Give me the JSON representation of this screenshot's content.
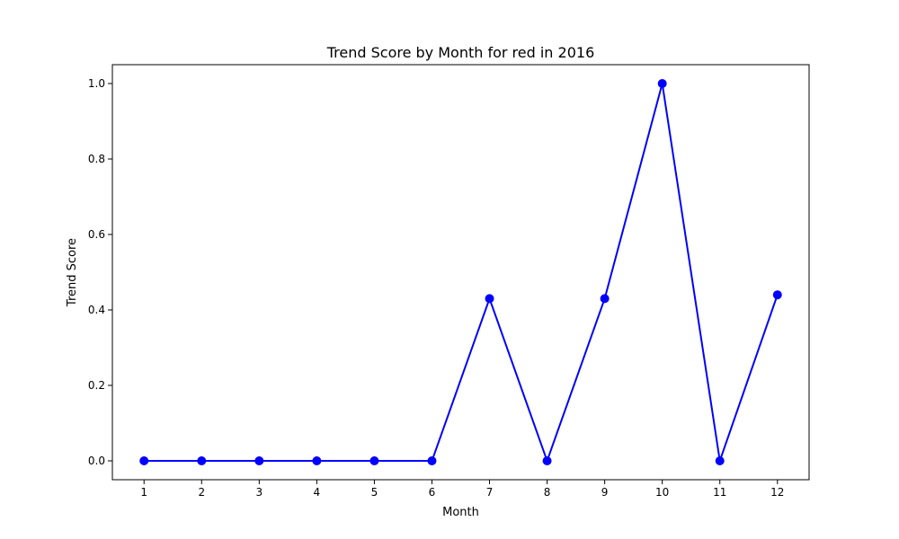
{
  "chart_data": {
    "type": "line",
    "title": "Trend Score by Month for red in 2016",
    "xlabel": "Month",
    "ylabel": "Trend Score",
    "x": [
      1,
      2,
      3,
      4,
      5,
      6,
      7,
      8,
      9,
      10,
      11,
      12
    ],
    "x_tick_labels": [
      "1",
      "2",
      "3",
      "4",
      "5",
      "6",
      "7",
      "8",
      "9",
      "10",
      "11",
      "12"
    ],
    "y_ticks": [
      0.0,
      0.2,
      0.4,
      0.6,
      0.8,
      1.0
    ],
    "y_tick_labels": [
      "0.0",
      "0.2",
      "0.4",
      "0.6",
      "0.8",
      "1.0"
    ],
    "xlim": [
      0.45,
      12.55
    ],
    "ylim": [
      -0.05,
      1.05
    ],
    "grid": false,
    "series": [
      {
        "values": [
          0,
          0,
          0,
          0,
          0,
          0,
          0.43,
          0,
          0.43,
          1.0,
          0,
          0.44
        ],
        "color": "#0000ff",
        "marker": "circle"
      }
    ]
  }
}
